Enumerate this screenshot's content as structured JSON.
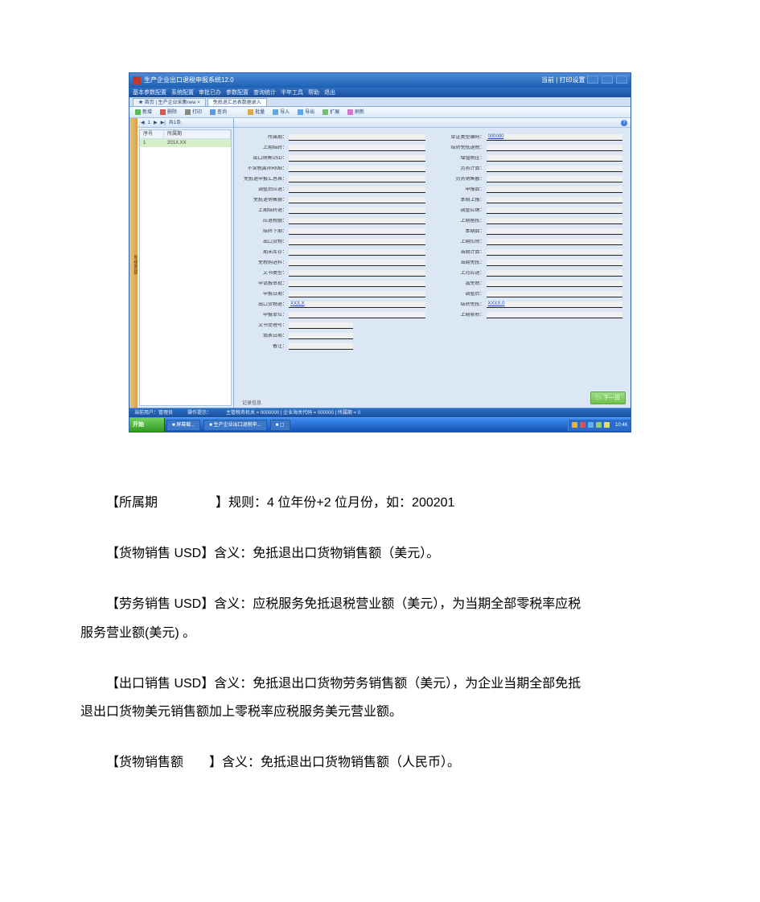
{
  "window": {
    "title": "生产企业出口退税申报系统12.0",
    "title_right": "当前 | 打印设置",
    "menubar": [
      "基本参数配置",
      "系统配置",
      "审批已办",
      "参数配置",
      "查询统计",
      "半年工具",
      "帮助",
      "退出"
    ],
    "tabs": [
      "★ 首页 | 生产企业采集new ×",
      "免抵退汇总表数据录入"
    ],
    "toolbar": [
      "新增",
      "删除",
      "打印",
      "查询",
      "批量",
      "导入",
      "导出",
      "扩展",
      "刷新"
    ],
    "title_bg_colors": [
      "#4a8ad8",
      "#1d5fb3"
    ],
    "accent_blue": "#1a4fc0",
    "panel_bg": "#dbe7f4"
  },
  "leftpanel": {
    "bar_items": [
      "◀",
      "1",
      "▶",
      "▶|",
      "共1条"
    ],
    "cols": [
      "序号",
      "所属期"
    ],
    "row": [
      "1",
      "201X.XX"
    ]
  },
  "form": {
    "rows_left_labels": [
      "所属期：",
      "上期结转：",
      "出口销售USD：",
      "不含税离岸RMB：",
      "免抵退申报汇总表：",
      "调整后应退：",
      "免抵退销售额：",
      "上期结转退：",
      "应退税额：",
      "结转下期：",
      "出口货物：",
      "期末库存：",
      "免税购进料：",
      "文书类型：",
      "申请报审批：",
      "申报日期：",
      "出口货物退：",
      "申报单位：",
      "文书受理号：",
      "填表日期：",
      "备注："
    ],
    "rows_right_labels": [
      "单证类型编码：",
      "结转免抵退税：",
      "增值税征：",
      "劳务计算：",
      "劳务销售额：",
      "申报数：",
      "本期上报：",
      "调整应纳：",
      "上期留抵：",
      "本期数：",
      "上期扣除：",
      "当期计算：",
      "当期免抵：",
      "上月应退：",
      "减免税：",
      "调整后：",
      "结转免抵：",
      "上期累积："
    ],
    "link1": "XXX.X",
    "link2": "XXXX.0",
    "footer": "记录信息",
    "badge": "▷ 下一页"
  },
  "statusbar": {
    "items": [
      "当前用户：管理员",
      "操作提示：",
      "主管税务机关 = 0000000 | 企业海关代码 = 000000 | 所属期 = 0"
    ]
  },
  "taskbar": {
    "start": "开始",
    "items": [
      "■ 屏幕截...",
      "■ 生产企业出口退税申...",
      "■ ▢"
    ],
    "clock": "10:46"
  },
  "doc": {
    "p1_term": "【所属期",
    "p1_rest": "】规则：4 位年份+2 位月份，如：200201",
    "p2": "【货物销售 USD】含义：免抵退出口货物销售额（美元）。",
    "p3a": "【劳务销售 USD】含义：应税服务免抵退税营业额（美元），为当期全部零税率应税",
    "p3b": "服务营业额(美元) 。",
    "p4a": "【出口销售 USD】含义：免抵退出口货物劳务销售额（美元），为企业当期全部免抵",
    "p4b": "退出口货物美元销售额加上零税率应税服务美元营业额。",
    "p5_term": "【货物销售额",
    "p5_rest": "】含义：免抵退出口货物销售额（人民币）。"
  }
}
